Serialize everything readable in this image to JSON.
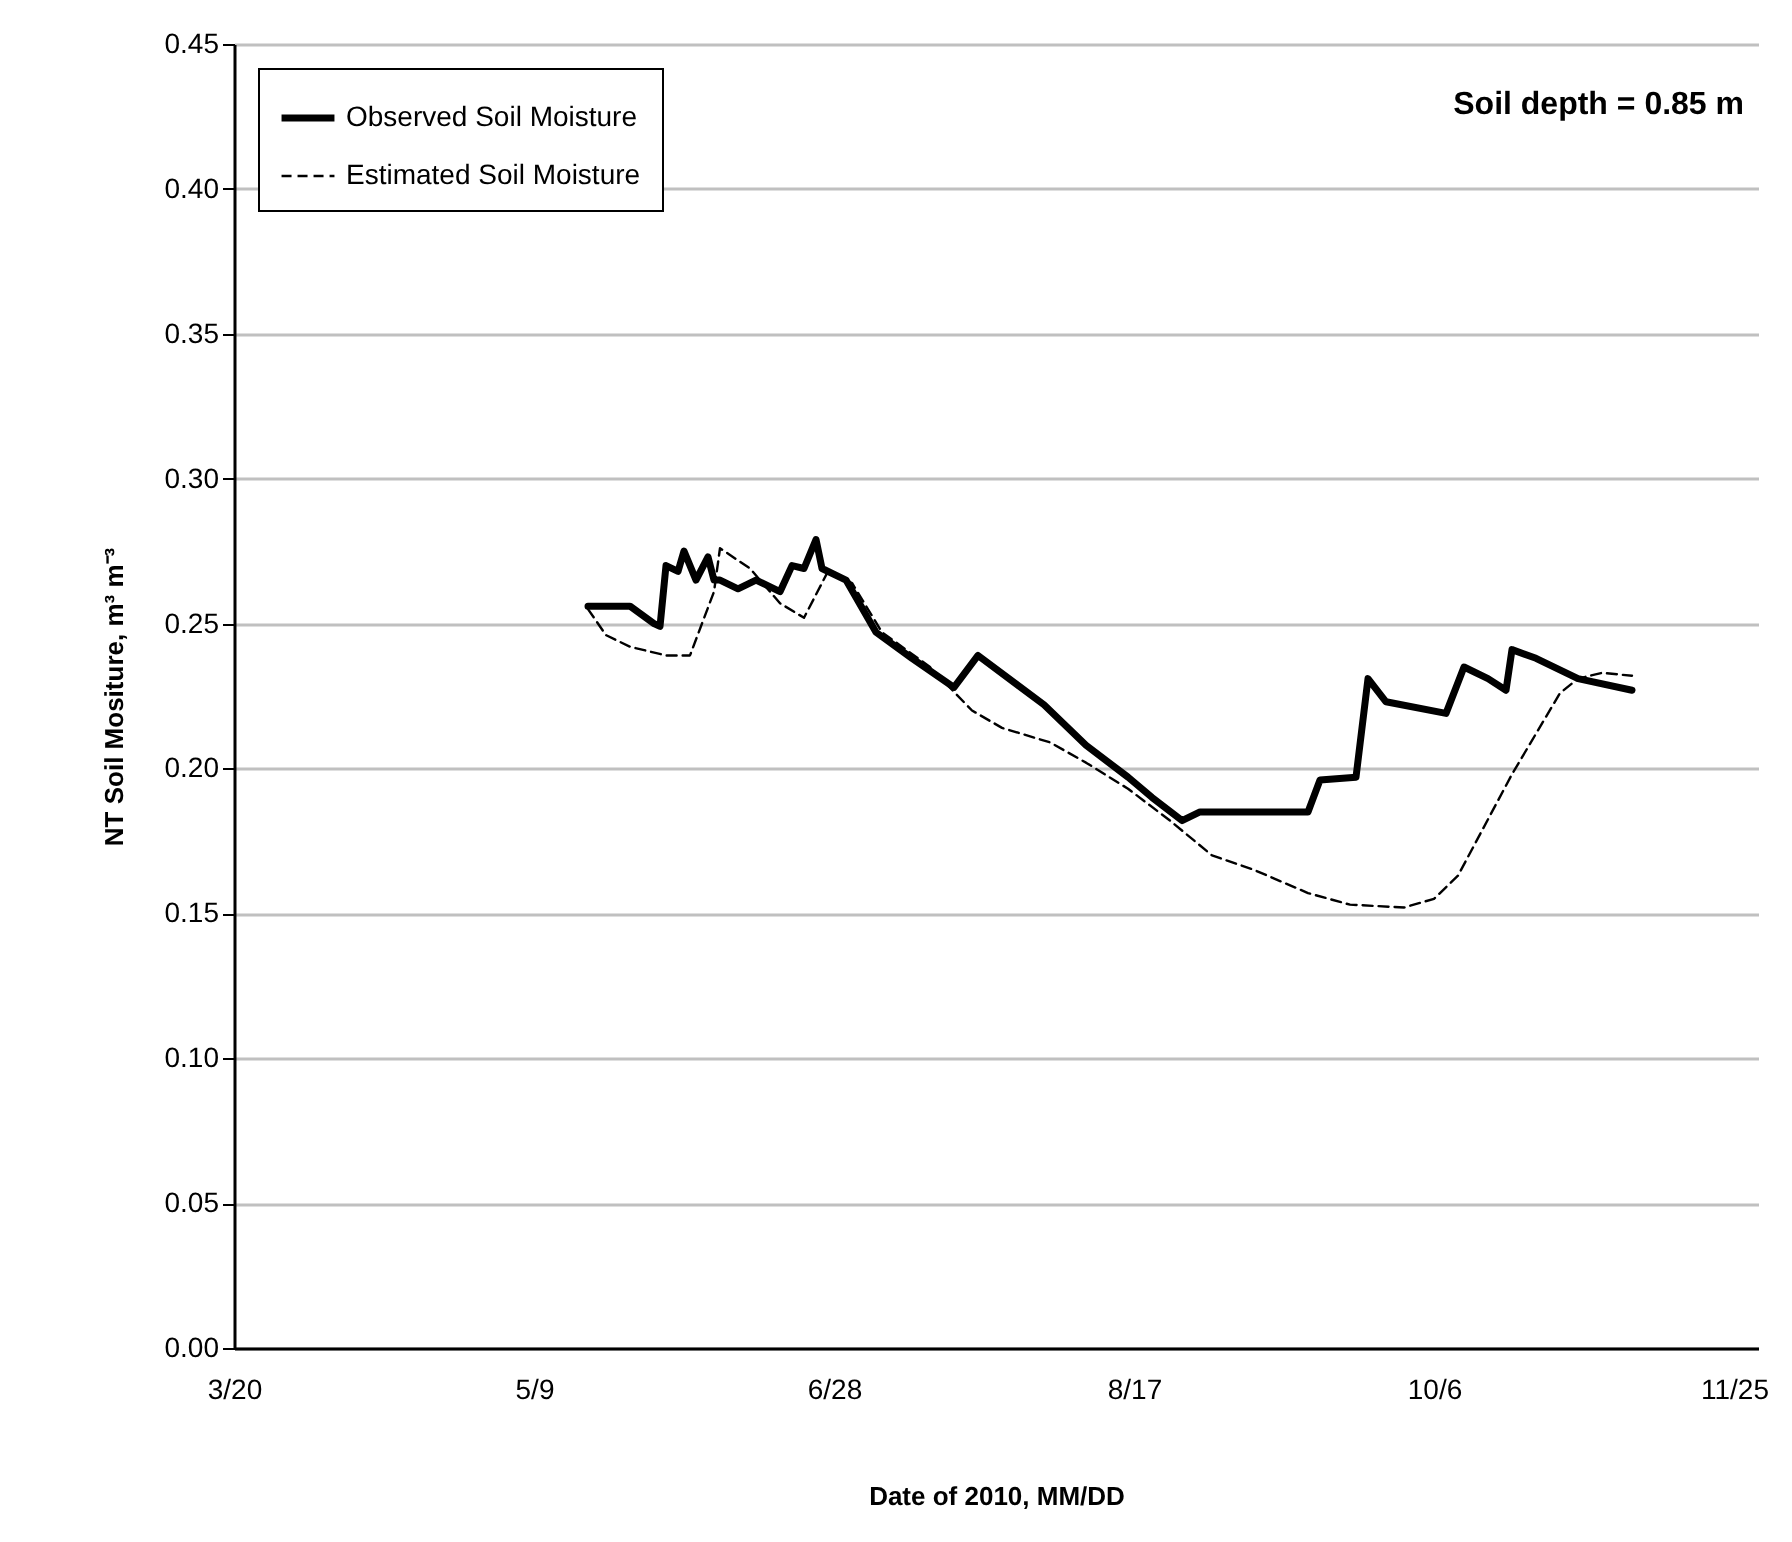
{
  "chart_data": {
    "type": "line",
    "xlabel": "Date of 2010, MM/DD",
    "ylabel": "NT Soil Mositure, m³ m⁻³",
    "annotations": [
      "Soil depth = 0.85 m"
    ],
    "xlim": [
      "2010-03-20",
      "2010-11-29"
    ],
    "xticks": [
      {
        "value": "2010-03-20",
        "label": "3/20"
      },
      {
        "value": "2010-05-09",
        "label": "5/9"
      },
      {
        "value": "2010-06-28",
        "label": "6/28"
      },
      {
        "value": "2010-08-17",
        "label": "8/17"
      },
      {
        "value": "2010-10-06",
        "label": "10/6"
      },
      {
        "value": "2010-11-25",
        "label": "11/25"
      }
    ],
    "ylim": [
      0,
      0.45
    ],
    "yticks": [
      {
        "value": 0,
        "label": "0.00"
      },
      {
        "value": 0.05,
        "label": "0.05"
      },
      {
        "value": 0.1,
        "label": "0.10"
      },
      {
        "value": 0.15,
        "label": "0.15"
      },
      {
        "value": 0.2,
        "label": "0.20"
      },
      {
        "value": 0.25,
        "label": "0.25"
      },
      {
        "value": 0.3,
        "label": "0.30"
      },
      {
        "value": 0.35,
        "label": "0.35"
      },
      {
        "value": 0.4,
        "label": "0.40"
      },
      {
        "value": 0.45,
        "label": "0.45"
      }
    ],
    "grid": "y",
    "legend": "top left",
    "series": [
      {
        "name": "Observed Soil Moisture",
        "color": "#000000",
        "line_style": "solid",
        "x": [
          "2010-05-18",
          "2010-05-25",
          "2010-05-29",
          "2010-05-30",
          "2010-05-31",
          "2010-06-02",
          "2010-06-03",
          "2010-06-05",
          "2010-06-07",
          "2010-06-08",
          "2010-06-09",
          "2010-06-12",
          "2010-06-15",
          "2010-06-19",
          "2010-06-21",
          "2010-06-23",
          "2010-06-25",
          "2010-06-26",
          "2010-06-30",
          "2010-07-05",
          "2010-07-11",
          "2010-07-18",
          "2010-07-22",
          "2010-08-02",
          "2010-08-09",
          "2010-08-16",
          "2010-08-20",
          "2010-08-25",
          "2010-08-28",
          "2010-09-15",
          "2010-09-17",
          "2010-09-23",
          "2010-09-25",
          "2010-09-28",
          "2010-10-08",
          "2010-10-11",
          "2010-10-15",
          "2010-10-18",
          "2010-10-19",
          "2010-10-23",
          "2010-10-30",
          "2010-11-08"
        ],
        "values": [
          0.256,
          0.256,
          0.25,
          0.249,
          0.27,
          0.268,
          0.275,
          0.265,
          0.273,
          0.265,
          0.265,
          0.262,
          0.265,
          0.261,
          0.27,
          0.269,
          0.279,
          0.269,
          0.265,
          0.247,
          0.238,
          0.228,
          0.239,
          0.222,
          0.208,
          0.197,
          0.19,
          0.182,
          0.185,
          0.185,
          0.196,
          0.197,
          0.231,
          0.223,
          0.219,
          0.235,
          0.231,
          0.227,
          0.241,
          0.238,
          0.231,
          0.227
        ]
      },
      {
        "name": "Estimated Soil Moisture",
        "color": "#000000",
        "line_style": "dashed",
        "x": [
          "2010-05-18",
          "2010-05-21",
          "2010-05-25",
          "2010-05-31",
          "2010-06-04",
          "2010-06-08",
          "2010-06-09",
          "2010-06-14",
          "2010-06-19",
          "2010-06-23",
          "2010-06-26",
          "2010-06-27",
          "2010-07-01",
          "2010-07-06",
          "2010-07-14",
          "2010-07-21",
          "2010-07-26",
          "2010-08-03",
          "2010-08-09",
          "2010-08-16",
          "2010-08-23",
          "2010-08-30",
          "2010-09-06",
          "2010-09-15",
          "2010-09-22",
          "2010-10-01",
          "2010-10-06",
          "2010-10-10",
          "2010-10-19",
          "2010-10-27",
          "2010-10-30",
          "2010-11-03",
          "2010-11-08"
        ],
        "values": [
          0.255,
          0.246,
          0.242,
          0.239,
          0.239,
          0.261,
          0.276,
          0.269,
          0.257,
          0.252,
          0.264,
          0.268,
          0.264,
          0.247,
          0.235,
          0.22,
          0.214,
          0.209,
          0.202,
          0.193,
          0.182,
          0.17,
          0.165,
          0.157,
          0.153,
          0.152,
          0.155,
          0.163,
          0.198,
          0.226,
          0.231,
          0.233,
          0.232
        ]
      }
    ]
  }
}
